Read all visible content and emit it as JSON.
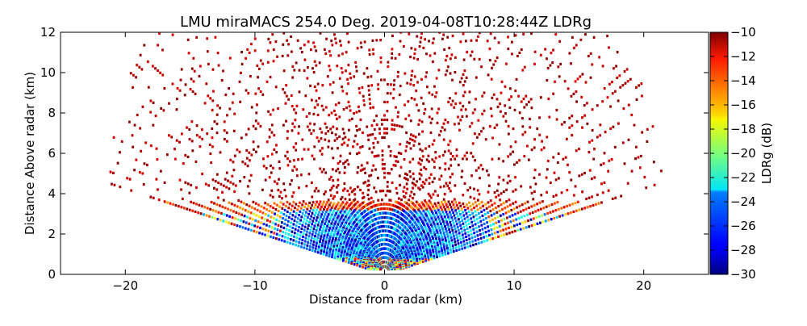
{
  "chart_data": {
    "type": "heatmap",
    "title": "LMU miraMACS 254.0 Deg. 2019-04-08T10:28:44Z  LDRg",
    "xlabel": "Distance from radar (km)",
    "ylabel": "Distance Above radar  (km)",
    "xlim": [
      -25,
      25
    ],
    "ylim": [
      0,
      12
    ],
    "x_ticks": [
      -20,
      -10,
      0,
      10,
      20
    ],
    "x_tick_labels": [
      "−20",
      "−10",
      "0",
      "10",
      "20"
    ],
    "y_ticks": [
      0,
      2,
      4,
      6,
      8,
      10,
      12
    ],
    "y_tick_labels": [
      "0",
      "2",
      "4",
      "6",
      "8",
      "10",
      "12"
    ],
    "scan": {
      "azimuth_deg": 254.0,
      "max_range_km": 22,
      "min_elevation_deg": 12,
      "max_elevation_deg": 168
    },
    "colorbar": {
      "label": "LDRg (dB)",
      "vmin": -30,
      "vmax": -10,
      "ticks": [
        -10,
        -12,
        -14,
        -16,
        -18,
        -20,
        -22,
        -24,
        -26,
        -28,
        -30
      ],
      "tick_labels": [
        "−10",
        "−12",
        "−14",
        "−16",
        "−18",
        "−20",
        "−22",
        "−24",
        "−26",
        "−28",
        "−30"
      ],
      "colormap": "jet"
    },
    "features": [
      {
        "name": "cloud_layer",
        "height_km": [
          0.3,
          3.6
        ],
        "ldr_db_range": [
          -30,
          -16
        ]
      },
      {
        "name": "sparse_echoes_aloft",
        "height_km": [
          3.6,
          12
        ],
        "ldr_db_typical": -10
      }
    ],
    "grid": false,
    "legend": "none"
  }
}
